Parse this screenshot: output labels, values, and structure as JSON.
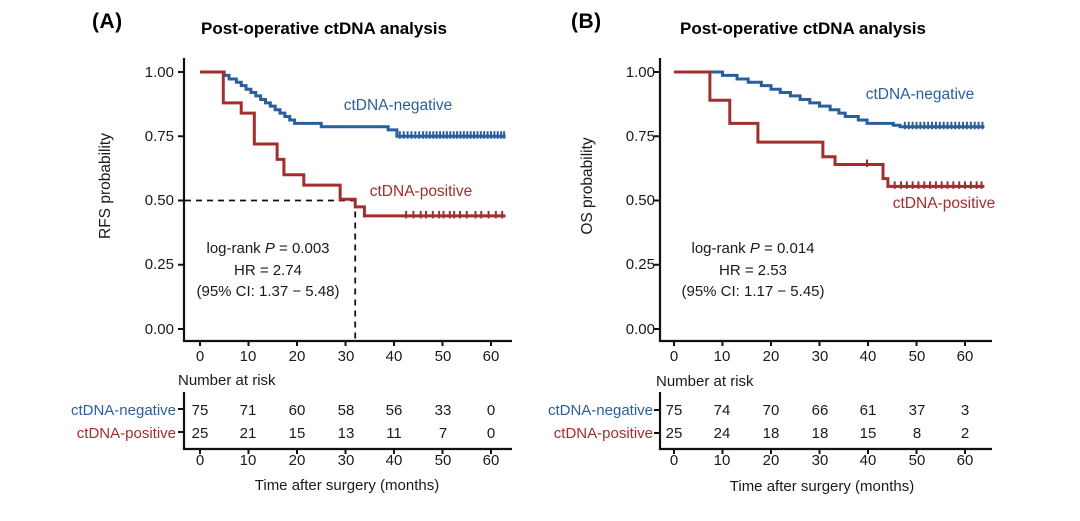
{
  "figure": {
    "background": "#ffffff",
    "axis_color": "#111111",
    "text_color": "#1a1a1a"
  },
  "chart_data": [
    {
      "panel_label": "(A)",
      "type": "line",
      "subtype": "kaplan-meier-step",
      "title": "Post-operative ctDNA analysis",
      "xlabel": "Time after surgery (months)",
      "ylabel": "RFS probability",
      "xlim": [
        0,
        65
      ],
      "ylim": [
        0,
        1
      ],
      "xticks": [
        "0",
        "10",
        "20",
        "30",
        "40",
        "50",
        "60"
      ],
      "ytick_labels": [
        "1.00",
        "0.75",
        "0.50",
        "0.25",
        "0.00"
      ],
      "grid": false,
      "legend_position": "labels-on-curves",
      "stats": {
        "logrank_prefix": "log-rank ",
        "p_symbol": "P",
        "p_value": " = 0.003",
        "hr": "HR = 2.74",
        "ci": "(95% CI: 1.37 − 5.48)"
      },
      "median_marker": {
        "time": 32,
        "prob": 0.5,
        "style": "dashed"
      },
      "series": [
        {
          "name": "ctDNA-negative",
          "color": "#2b5f9c",
          "steps": [
            [
              0,
              1.0
            ],
            [
              5,
              0.987
            ],
            [
              6,
              0.973
            ],
            [
              7.5,
              0.96
            ],
            [
              8.5,
              0.947
            ],
            [
              9.5,
              0.933
            ],
            [
              10.5,
              0.92
            ],
            [
              11.5,
              0.907
            ],
            [
              12.5,
              0.893
            ],
            [
              13.5,
              0.88
            ],
            [
              14.5,
              0.867
            ],
            [
              15.5,
              0.853
            ],
            [
              16.5,
              0.84
            ],
            [
              17.5,
              0.827
            ],
            [
              18.5,
              0.813
            ],
            [
              19.5,
              0.8
            ],
            [
              25,
              0.787
            ],
            [
              38.8,
              0.775
            ],
            [
              40.6,
              0.75
            ]
          ],
          "end_time": 63,
          "censor_prob": 0.75,
          "censor_times": [
            41.2,
            42,
            42.8,
            43.6,
            44.4,
            45.2,
            46,
            46.7,
            47.4,
            48.1,
            48.8,
            49.5,
            50.2,
            50.9,
            51.6,
            52.3,
            53,
            53.7,
            54.4,
            55.1,
            55.8,
            56.5,
            57.2,
            57.9,
            58.6,
            59.3,
            60,
            60.7,
            61.4,
            62.1,
            62.7
          ],
          "extra_censors": []
        },
        {
          "name": "ctDNA-positive",
          "color": "#a22e2e",
          "steps": [
            [
              0,
              1.0
            ],
            [
              4.8,
              0.88
            ],
            [
              8.5,
              0.84
            ],
            [
              11.2,
              0.72
            ],
            [
              15.9,
              0.66
            ],
            [
              17.3,
              0.6
            ],
            [
              21.4,
              0.56
            ],
            [
              28.9,
              0.505
            ],
            [
              32,
              0.475
            ],
            [
              33.9,
              0.44
            ]
          ],
          "end_time": 63,
          "censor_prob": 0.44,
          "censor_times": [
            42.5,
            44,
            45.5,
            46.6,
            48,
            49.3,
            50.2,
            51.5,
            52.4,
            53.6,
            55,
            56.8,
            58,
            59.5,
            61,
            62.3
          ],
          "extra_censors": []
        }
      ],
      "risk_table": {
        "header": "Number at risk",
        "time_ticks": [
          "0",
          "10",
          "20",
          "30",
          "40",
          "50",
          "60"
        ],
        "rows": [
          {
            "label": "ctDNA-negative",
            "counts": [
              "75",
              "71",
              "60",
              "58",
              "56",
              "33",
              "0"
            ]
          },
          {
            "label": "ctDNA-positive",
            "counts": [
              "25",
              "21",
              "15",
              "13",
              "11",
              "7",
              "0"
            ]
          }
        ]
      }
    },
    {
      "panel_label": "(B)",
      "type": "line",
      "subtype": "kaplan-meier-step",
      "title": "Post-operative ctDNA analysis",
      "xlabel": "Time after surgery (months)",
      "ylabel": "OS probability",
      "xlim": [
        0,
        65
      ],
      "ylim": [
        0,
        1
      ],
      "xticks": [
        "0",
        "10",
        "20",
        "30",
        "40",
        "50",
        "60"
      ],
      "ytick_labels": [
        "1.00",
        "0.75",
        "0.50",
        "0.25",
        "0.00"
      ],
      "grid": false,
      "legend_position": "labels-on-curves",
      "stats": {
        "logrank_prefix": "log-rank ",
        "p_symbol": "P",
        "p_value": " = 0.014",
        "hr": "HR = 2.53",
        "ci": "(95% CI: 1.17 − 5.45)"
      },
      "median_marker": null,
      "series": [
        {
          "name": "ctDNA-negative",
          "color": "#2b5f9c",
          "steps": [
            [
              0,
              1.0
            ],
            [
              10,
              0.987
            ],
            [
              13,
              0.973
            ],
            [
              15.3,
              0.96
            ],
            [
              18,
              0.947
            ],
            [
              20,
              0.933
            ],
            [
              21.9,
              0.92
            ],
            [
              24,
              0.907
            ],
            [
              26,
              0.893
            ],
            [
              28,
              0.88
            ],
            [
              30,
              0.867
            ],
            [
              32.2,
              0.853
            ],
            [
              34,
              0.84
            ],
            [
              35.3,
              0.827
            ],
            [
              38,
              0.813
            ],
            [
              39.8,
              0.8
            ],
            [
              45.2,
              0.793
            ],
            [
              46.6,
              0.787
            ]
          ],
          "end_time": 64,
          "censor_prob": 0.787,
          "censor_times": [
            47.6,
            48.4,
            49.2,
            50,
            50.8,
            51.6,
            52.4,
            53.2,
            54,
            54.8,
            55.6,
            56.4,
            57.2,
            58,
            58.8,
            59.6,
            60.4,
            61.2,
            62,
            62.8,
            63.6
          ],
          "extra_censors": []
        },
        {
          "name": "ctDNA-positive",
          "color": "#a22e2e",
          "steps": [
            [
              0,
              1.0
            ],
            [
              7.4,
              0.89
            ],
            [
              11.5,
              0.8
            ],
            [
              17.3,
              0.727
            ],
            [
              30.7,
              0.67
            ],
            [
              33.2,
              0.64
            ],
            [
              43.1,
              0.585
            ],
            [
              44.1,
              0.555
            ]
          ],
          "end_time": 64,
          "censor_prob": 0.555,
          "censor_times": [
            45.5,
            46.8,
            48,
            49.2,
            50.4,
            51.6,
            52.8,
            54,
            55.2,
            56.4,
            57.6,
            58.8,
            60,
            61.2,
            62.4,
            63.4
          ],
          "extra_censors": [
            [
              39.8,
              0.64
            ]
          ]
        }
      ],
      "risk_table": {
        "header": "Number at risk",
        "time_ticks": [
          "0",
          "10",
          "20",
          "30",
          "40",
          "50",
          "60"
        ],
        "rows": [
          {
            "label": "ctDNA-negative",
            "counts": [
              "75",
              "74",
              "70",
              "66",
              "61",
              "37",
              "3"
            ]
          },
          {
            "label": "ctDNA-positive",
            "counts": [
              "25",
              "24",
              "18",
              "18",
              "15",
              "8",
              "2"
            ]
          }
        ]
      }
    }
  ]
}
